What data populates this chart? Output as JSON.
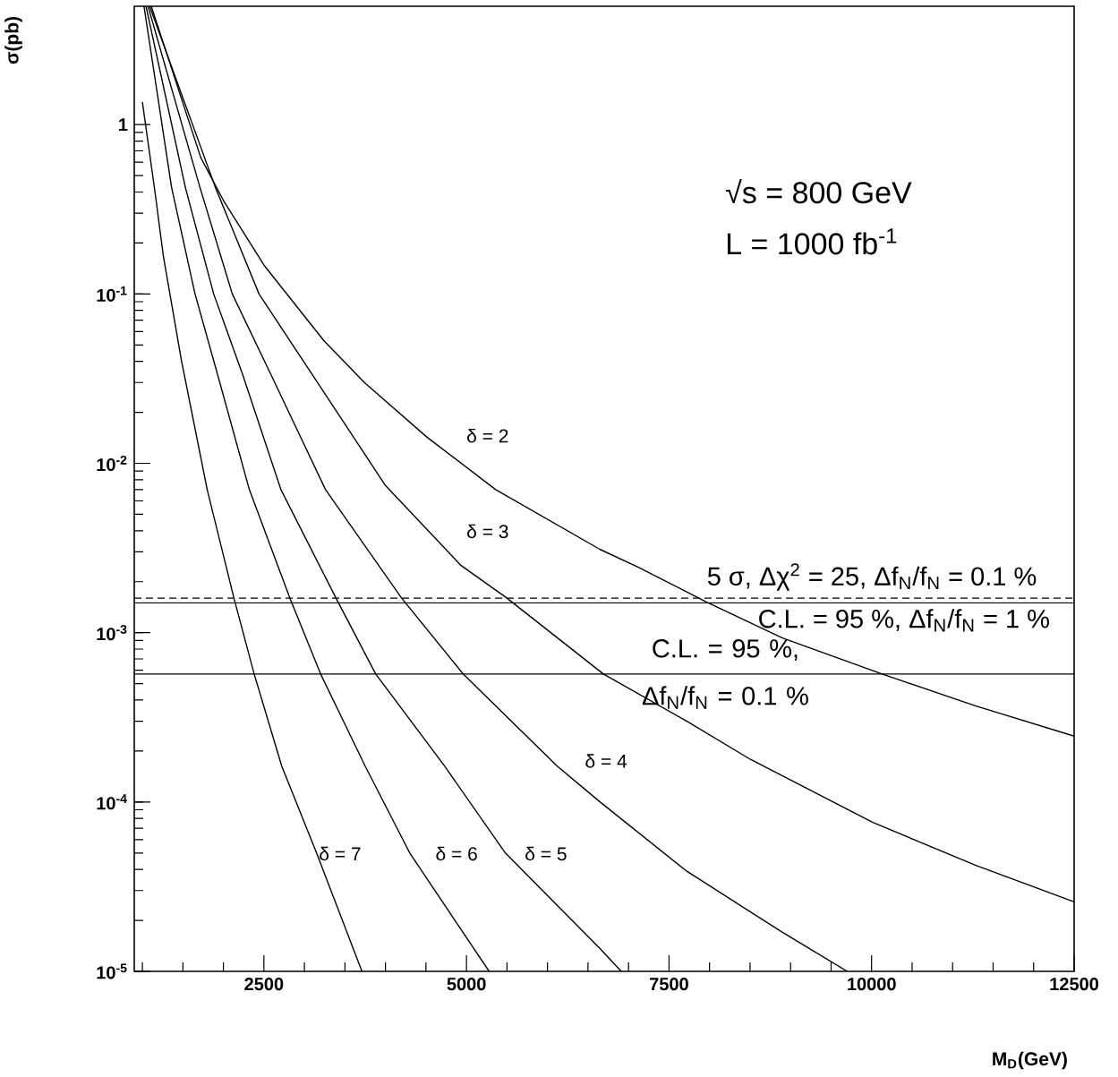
{
  "chart_data": {
    "type": "line",
    "xlabel": "M$_{D}$(GeV)",
    "ylabel": "σ(pb)",
    "log": "y",
    "line_style": "solid",
    "xlim": [
      900,
      12500
    ],
    "ylim": [
      1e-05,
      5
    ],
    "xticks": [
      {
        "value": 1000,
        "label": null
      },
      {
        "value": 1500,
        "label": null
      },
      {
        "value": 2000,
        "label": null
      },
      2500,
      {
        "value": 3000,
        "label": null
      },
      {
        "value": 3500,
        "label": null
      },
      {
        "value": 4000,
        "label": null
      },
      {
        "value": 4500,
        "label": null
      },
      5000,
      {
        "value": 5500,
        "label": null
      },
      {
        "value": 6000,
        "label": null
      },
      {
        "value": 6500,
        "label": null
      },
      {
        "value": 7000,
        "label": null
      },
      7500,
      {
        "value": 8000,
        "label": null
      },
      {
        "value": 8500,
        "label": null
      },
      {
        "value": 9000,
        "label": null
      },
      {
        "value": 9500,
        "label": null
      },
      10000,
      {
        "value": 10500,
        "label": null
      },
      {
        "value": 11000,
        "label": null
      },
      {
        "value": 11500,
        "label": null
      },
      {
        "value": 12000,
        "label": null
      },
      12500
    ],
    "yticks": [
      {
        "value": 1e-05,
        "label": "10$^{-5}$"
      },
      {
        "value": 0.0001,
        "label": "10$^{-4}$"
      },
      {
        "value": 0.001,
        "label": "10$^{-3}$"
      },
      {
        "value": 0.01,
        "label": "10$^{-2}$"
      },
      {
        "value": 0.1,
        "label": "10$^{-1}$"
      },
      1
    ],
    "series": [
      {
        "name": "δ = 2",
        "color": "#000000",
        "x": [
          1110,
          1720,
          2010,
          2510,
          3240,
          3740,
          4510,
          5360,
          6650,
          7110,
          7960,
          8900,
          10130,
          11280,
          12500
        ],
        "values": [
          5,
          0.64,
          0.35,
          0.146,
          0.053,
          0.03,
          0.0143,
          0.007,
          0.0031,
          0.00245,
          0.00152,
          0.00093,
          0.00057,
          0.00037,
          0.000245
        ]
      },
      {
        "name": "δ = 3",
        "color": "#000000",
        "x": [
          1090,
          1900,
          2440,
          3100,
          4000,
          4930,
          5500,
          6690,
          7720,
          8510,
          10010,
          11280,
          12500
        ],
        "values": [
          5,
          0.427,
          0.1,
          0.0332,
          0.0074,
          0.0025,
          0.0016,
          0.00057,
          0.0003,
          0.000178,
          7.6e-05,
          4.24e-05,
          2.57e-05
        ]
      },
      {
        "name": "δ = 4",
        "color": "#000000",
        "x": [
          1070,
          1710,
          2110,
          2590,
          3260,
          4200,
          4960,
          6120,
          6650,
          7720,
          8900,
          9700
        ],
        "values": [
          5,
          0.427,
          0.1,
          0.0332,
          0.007,
          0.0016,
          0.00057,
          0.000163,
          0.0001,
          3.9e-05,
          1.7e-05,
          1e-05
        ]
      },
      {
        "name": "δ = 5",
        "color": "#000000",
        "x": [
          1045,
          1530,
          1880,
          2240,
          2710,
          3390,
          3880,
          4730,
          5480,
          6650,
          6910
        ],
        "values": [
          5,
          0.427,
          0.1,
          0.0332,
          0.007,
          0.0016,
          0.00057,
          0.000163,
          5e-05,
          1.36e-05,
          1e-05
        ]
      },
      {
        "name": "δ = 6",
        "color": "#000000",
        "x": [
          1020,
          1360,
          1650,
          1930,
          2320,
          2820,
          3200,
          3750,
          4300,
          5280
        ],
        "values": [
          5,
          0.427,
          0.1,
          0.0332,
          0.007,
          0.0016,
          0.00057,
          0.000163,
          5e-05,
          1e-05
        ]
      },
      {
        "name": "δ = 7",
        "color": "#000000",
        "x": [
          1000,
          1150,
          1260,
          1480,
          1800,
          2130,
          2380,
          2720,
          3150,
          3710
        ],
        "values": [
          1.36,
          0.42,
          0.166,
          0.041,
          0.007,
          0.0016,
          0.00057,
          0.000163,
          5e-05,
          1e-05
        ]
      }
    ],
    "ref_lines": [
      {
        "axis": "y",
        "value": 0.0016,
        "line_style": "dashed",
        "label": "5 σ, Δχ$^{2}$ = 25, Δf$_{N}$/f$_{N}$ = 0.1 %"
      },
      {
        "axis": "y",
        "value": 0.0015,
        "line_style": "solid",
        "label": "C.L. = 95 %, Δf$_{N}$/f$_{N}$ = 1 %"
      },
      {
        "axis": "y",
        "value": 0.00057,
        "line_style": "solid",
        "label": "C.L. = 95 %, Δf$_{N}$/f$_{N}$ = 0.1 %"
      }
    ],
    "annotations": [
      "√s = 800 GeV",
      "L = 1000 fb$^{-1}$"
    ]
  }
}
